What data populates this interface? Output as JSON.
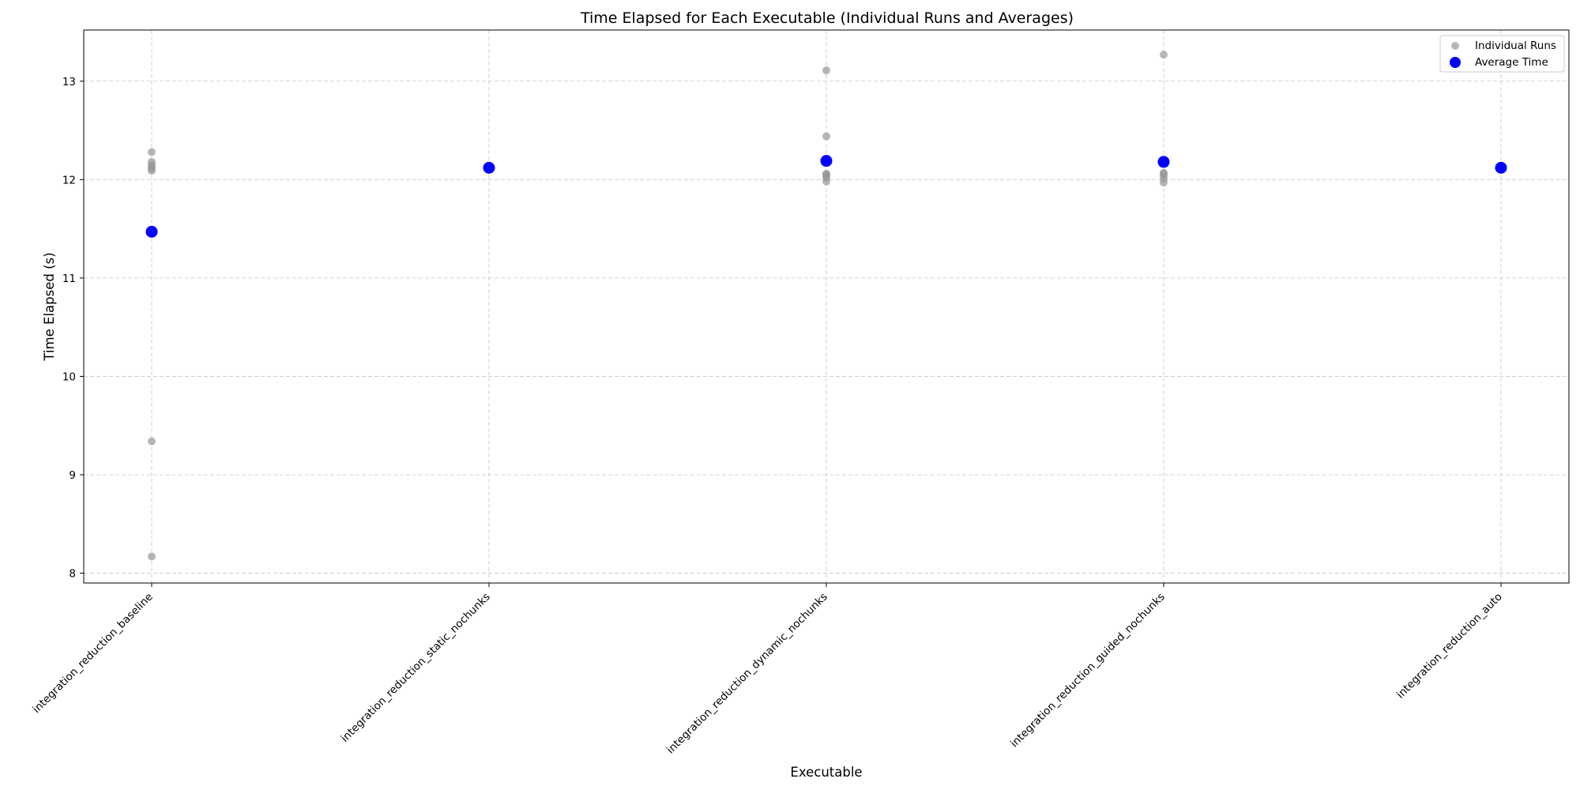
{
  "chart_data": {
    "type": "scatter",
    "title": "Time Elapsed for Each Executable (Individual Runs and Averages)",
    "xlabel": "Executable",
    "ylabel": "Time Elapsed (s)",
    "categories": [
      "integration_reduction_baseline",
      "integration_reduction_static_nochunks",
      "integration_reduction_dynamic_nochunks",
      "integration_reduction_guided_nochunks",
      "integration_reduction_auto"
    ],
    "ylim": [
      7.9,
      13.52
    ],
    "yticks": [
      8,
      9,
      10,
      11,
      12,
      13
    ],
    "grid": true,
    "legend_position": "top-right",
    "series": [
      {
        "name": "Individual Runs",
        "color": "#999999",
        "points": [
          {
            "category": 0,
            "y": 12.28
          },
          {
            "category": 0,
            "y": 12.18
          },
          {
            "category": 0,
            "y": 12.15
          },
          {
            "category": 0,
            "y": 12.13
          },
          {
            "category": 0,
            "y": 12.11
          },
          {
            "category": 0,
            "y": 12.09
          },
          {
            "category": 0,
            "y": 9.34
          },
          {
            "category": 0,
            "y": 8.17
          },
          {
            "category": 1,
            "y": 12.13
          },
          {
            "category": 1,
            "y": 12.12
          },
          {
            "category": 1,
            "y": 12.11
          },
          {
            "category": 1,
            "y": 12.1
          },
          {
            "category": 2,
            "y": 13.11
          },
          {
            "category": 2,
            "y": 12.44
          },
          {
            "category": 2,
            "y": 12.06
          },
          {
            "category": 2,
            "y": 12.05
          },
          {
            "category": 2,
            "y": 12.04
          },
          {
            "category": 2,
            "y": 12.02
          },
          {
            "category": 2,
            "y": 11.98
          },
          {
            "category": 3,
            "y": 13.27
          },
          {
            "category": 3,
            "y": 12.07
          },
          {
            "category": 3,
            "y": 12.06
          },
          {
            "category": 3,
            "y": 12.04
          },
          {
            "category": 3,
            "y": 12.01
          },
          {
            "category": 3,
            "y": 11.97
          },
          {
            "category": 4,
            "y": 12.13
          },
          {
            "category": 4,
            "y": 12.12
          },
          {
            "category": 4,
            "y": 12.11
          },
          {
            "category": 4,
            "y": 12.1
          }
        ]
      },
      {
        "name": "Average Time",
        "color": "#0000ff",
        "points": [
          {
            "category": 0,
            "y": 11.47
          },
          {
            "category": 1,
            "y": 12.12
          },
          {
            "category": 2,
            "y": 12.19
          },
          {
            "category": 3,
            "y": 12.18
          },
          {
            "category": 4,
            "y": 12.12
          }
        ]
      }
    ]
  }
}
